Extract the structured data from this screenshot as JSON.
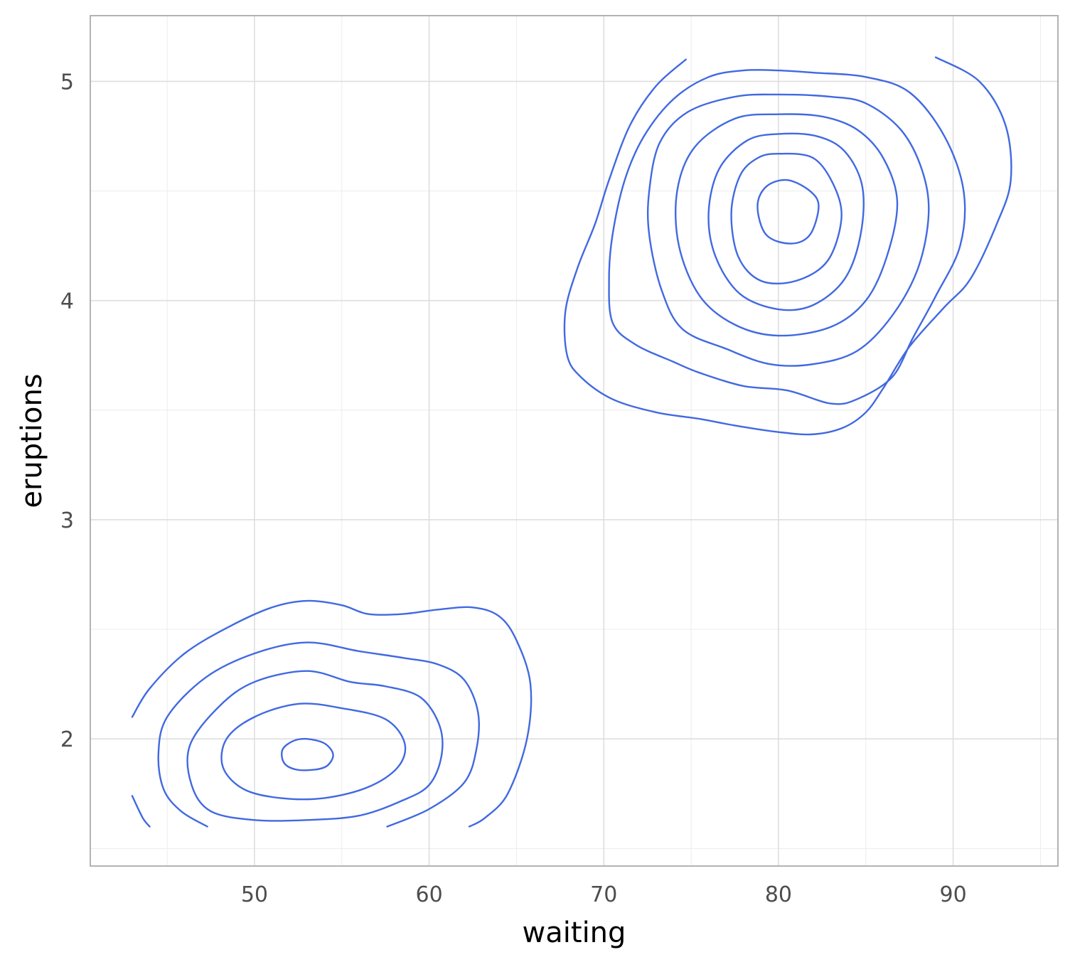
{
  "chart_data": {
    "type": "contour",
    "title": "",
    "xlabel": "waiting",
    "ylabel": "eruptions",
    "xlim": [
      40.6,
      96.0
    ],
    "ylim": [
      1.42,
      5.3
    ],
    "xticks": [
      50,
      60,
      70,
      80,
      90
    ],
    "xtick_labels": [
      "50",
      "60",
      "70",
      "80",
      "90"
    ],
    "yticks": [
      2,
      3,
      4,
      5
    ],
    "ytick_labels": [
      "2",
      "3",
      "4",
      "5"
    ],
    "x_minor": [
      45,
      55,
      65,
      75,
      85,
      95
    ],
    "y_minor": [
      1.5,
      2.5,
      3.5,
      4.5
    ],
    "grid": true,
    "line_color": "#4169e1",
    "contours": [
      {
        "name": "upper-1",
        "closed": false,
        "points": [
          [
            74.7,
            5.1
          ],
          [
            73,
            4.98
          ],
          [
            71.5,
            4.8
          ],
          [
            70.3,
            4.55
          ],
          [
            69.5,
            4.35
          ],
          [
            68.5,
            4.15
          ],
          [
            67.8,
            3.95
          ],
          [
            67.9,
            3.75
          ],
          [
            68.7,
            3.65
          ],
          [
            70.5,
            3.55
          ],
          [
            73,
            3.49
          ],
          [
            75.5,
            3.46
          ],
          [
            77.5,
            3.43
          ],
          [
            80,
            3.4
          ],
          [
            82,
            3.39
          ],
          [
            83.7,
            3.42
          ],
          [
            85,
            3.49
          ],
          [
            86,
            3.6
          ],
          [
            87.5,
            3.79
          ],
          [
            89.5,
            3.97
          ],
          [
            91,
            4.1
          ],
          [
            92.5,
            4.35
          ],
          [
            93.3,
            4.55
          ],
          [
            93,
            4.8
          ],
          [
            91.5,
            5.0
          ],
          [
            89,
            5.11
          ]
        ]
      },
      {
        "name": "upper-2",
        "closed": true,
        "points": [
          [
            76,
            5.02
          ],
          [
            78,
            5.05
          ],
          [
            80,
            5.05
          ],
          [
            82,
            5.04
          ],
          [
            85,
            5.02
          ],
          [
            87.5,
            4.95
          ],
          [
            89.5,
            4.75
          ],
          [
            90.6,
            4.5
          ],
          [
            90.4,
            4.25
          ],
          [
            89,
            4.02
          ],
          [
            87.7,
            3.83
          ],
          [
            86.5,
            3.65
          ],
          [
            84.5,
            3.55
          ],
          [
            83,
            3.53
          ],
          [
            80.5,
            3.59
          ],
          [
            78,
            3.61
          ],
          [
            75.5,
            3.67
          ],
          [
            74,
            3.72
          ],
          [
            71.8,
            3.8
          ],
          [
            70.5,
            3.9
          ],
          [
            70.3,
            4.1
          ],
          [
            70.5,
            4.3
          ],
          [
            71.2,
            4.55
          ],
          [
            72.3,
            4.75
          ],
          [
            74,
            4.92
          ]
        ]
      },
      {
        "name": "upper-3",
        "closed": true,
        "points": [
          [
            80,
            4.94
          ],
          [
            83,
            4.93
          ],
          [
            85,
            4.9
          ],
          [
            87,
            4.78
          ],
          [
            88.2,
            4.6
          ],
          [
            88.6,
            4.4
          ],
          [
            88,
            4.15
          ],
          [
            86.5,
            3.93
          ],
          [
            84.5,
            3.77
          ],
          [
            82,
            3.71
          ],
          [
            79.5,
            3.71
          ],
          [
            77,
            3.78
          ],
          [
            74.5,
            3.87
          ],
          [
            73.3,
            4.05
          ],
          [
            72.6,
            4.3
          ],
          [
            72.6,
            4.5
          ],
          [
            73.2,
            4.72
          ],
          [
            74.8,
            4.86
          ],
          [
            77.5,
            4.93
          ]
        ]
      },
      {
        "name": "upper-4",
        "closed": true,
        "points": [
          [
            80,
            4.85
          ],
          [
            82.5,
            4.84
          ],
          [
            84.5,
            4.78
          ],
          [
            86,
            4.65
          ],
          [
            86.8,
            4.45
          ],
          [
            86.2,
            4.2
          ],
          [
            85,
            4.0
          ],
          [
            83,
            3.88
          ],
          [
            80,
            3.84
          ],
          [
            77.5,
            3.89
          ],
          [
            75.5,
            4.02
          ],
          [
            74.3,
            4.25
          ],
          [
            74.2,
            4.5
          ],
          [
            75.2,
            4.7
          ],
          [
            77.5,
            4.83
          ]
        ]
      },
      {
        "name": "upper-5",
        "closed": true,
        "points": [
          [
            80,
            4.76
          ],
          [
            82.2,
            4.75
          ],
          [
            83.8,
            4.68
          ],
          [
            84.8,
            4.52
          ],
          [
            84.7,
            4.3
          ],
          [
            83.8,
            4.1
          ],
          [
            82,
            3.98
          ],
          [
            80,
            3.96
          ],
          [
            77.8,
            4.03
          ],
          [
            76.4,
            4.2
          ],
          [
            76,
            4.4
          ],
          [
            76.6,
            4.6
          ],
          [
            78.2,
            4.73
          ]
        ]
      },
      {
        "name": "upper-6",
        "closed": true,
        "points": [
          [
            80,
            4.67
          ],
          [
            82,
            4.65
          ],
          [
            83.2,
            4.52
          ],
          [
            83.6,
            4.37
          ],
          [
            82.8,
            4.18
          ],
          [
            81,
            4.09
          ],
          [
            79,
            4.09
          ],
          [
            77.7,
            4.2
          ],
          [
            77.3,
            4.4
          ],
          [
            77.8,
            4.57
          ],
          [
            78.8,
            4.65
          ]
        ]
      },
      {
        "name": "upper-7",
        "closed": true,
        "points": [
          [
            80.5,
            4.55
          ],
          [
            81.8,
            4.5
          ],
          [
            82.3,
            4.43
          ],
          [
            81.8,
            4.3
          ],
          [
            80.7,
            4.26
          ],
          [
            79.3,
            4.3
          ],
          [
            78.8,
            4.43
          ],
          [
            79.3,
            4.52
          ]
        ]
      },
      {
        "name": "lower-1-left",
        "closed": false,
        "points": [
          [
            44,
            1.6
          ],
          [
            43.6,
            1.64
          ],
          [
            43.0,
            1.74
          ]
        ]
      },
      {
        "name": "lower-1",
        "closed": false,
        "points": [
          [
            43.0,
            2.1
          ],
          [
            44,
            2.23
          ],
          [
            46,
            2.39
          ],
          [
            48.5,
            2.51
          ],
          [
            51,
            2.6
          ],
          [
            53,
            2.63
          ],
          [
            55,
            2.61
          ],
          [
            56.5,
            2.57
          ],
          [
            58.5,
            2.57
          ],
          [
            60.5,
            2.59
          ],
          [
            62.5,
            2.6
          ],
          [
            64,
            2.56
          ],
          [
            65,
            2.45
          ],
          [
            65.8,
            2.25
          ],
          [
            65.6,
            2.0
          ],
          [
            64.5,
            1.75
          ],
          [
            63.2,
            1.64
          ],
          [
            62.3,
            1.6
          ]
        ]
      },
      {
        "name": "lower-2",
        "closed": false,
        "points": [
          [
            47.3,
            1.6
          ],
          [
            45.8,
            1.67
          ],
          [
            44.8,
            1.77
          ],
          [
            44.5,
            1.93
          ],
          [
            45,
            2.1
          ],
          [
            47.2,
            2.28
          ],
          [
            50,
            2.39
          ],
          [
            53,
            2.44
          ],
          [
            56,
            2.4
          ],
          [
            58.5,
            2.37
          ],
          [
            60.5,
            2.34
          ],
          [
            62,
            2.27
          ],
          [
            62.8,
            2.12
          ],
          [
            62.7,
            1.95
          ],
          [
            62,
            1.8
          ],
          [
            60,
            1.68
          ],
          [
            57.6,
            1.6
          ]
        ]
      },
      {
        "name": "lower-3",
        "closed": true,
        "points": [
          [
            48,
            2.15
          ],
          [
            50,
            2.26
          ],
          [
            53,
            2.31
          ],
          [
            55.5,
            2.26
          ],
          [
            57.5,
            2.24
          ],
          [
            59.5,
            2.19
          ],
          [
            60.6,
            2.06
          ],
          [
            60.7,
            1.92
          ],
          [
            60,
            1.79
          ],
          [
            58.5,
            1.72
          ],
          [
            56,
            1.65
          ],
          [
            53,
            1.63
          ],
          [
            50,
            1.63
          ],
          [
            47.5,
            1.67
          ],
          [
            46.4,
            1.79
          ],
          [
            46.3,
            1.97
          ]
        ]
      },
      {
        "name": "lower-4",
        "closed": true,
        "points": [
          [
            50,
            2.1
          ],
          [
            52.5,
            2.16
          ],
          [
            55,
            2.14
          ],
          [
            57.5,
            2.09
          ],
          [
            58.6,
            1.98
          ],
          [
            58.2,
            1.87
          ],
          [
            56.5,
            1.78
          ],
          [
            54,
            1.73
          ],
          [
            51.5,
            1.73
          ],
          [
            49.4,
            1.77
          ],
          [
            48.2,
            1.87
          ],
          [
            48.4,
            2.0
          ]
        ]
      },
      {
        "name": "lower-5",
        "closed": true,
        "points": [
          [
            53,
            2.0
          ],
          [
            54,
            1.98
          ],
          [
            54.5,
            1.93
          ],
          [
            54.2,
            1.88
          ],
          [
            53.5,
            1.86
          ],
          [
            52.4,
            1.86
          ],
          [
            51.7,
            1.89
          ],
          [
            51.6,
            1.95
          ],
          [
            52.2,
            1.99
          ]
        ]
      }
    ]
  }
}
